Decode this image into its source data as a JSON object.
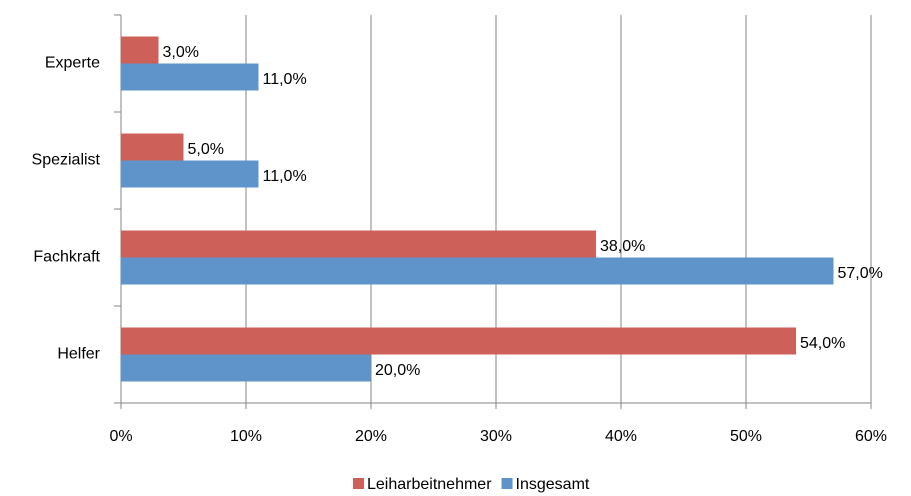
{
  "chart_data": {
    "type": "bar",
    "orientation": "horizontal",
    "categories": [
      "Experte",
      "Spezialist",
      "Fachkraft",
      "Helfer"
    ],
    "series": [
      {
        "name": "Leiharbeitnehmer",
        "color": "#cd6159",
        "values": [
          3,
          5,
          38,
          54
        ],
        "value_labels": [
          "3,0%",
          "5,0%",
          "38,0%",
          "54,0%"
        ]
      },
      {
        "name": "Insgesamt",
        "color": "#5f94cb",
        "values": [
          11,
          11,
          57,
          20
        ],
        "value_labels": [
          "11,0%",
          "11,0%",
          "57,0%",
          "20,0%"
        ]
      }
    ],
    "xlim": [
      0,
      60
    ],
    "xticks": [
      {
        "value": 0,
        "label": "0%"
      },
      {
        "value": 10,
        "label": "10%"
      },
      {
        "value": 20,
        "label": "20%"
      },
      {
        "value": 30,
        "label": "30%"
      },
      {
        "value": 40,
        "label": "40%"
      },
      {
        "value": 50,
        "label": "50%"
      },
      {
        "value": 60,
        "label": "60%"
      }
    ],
    "grid": true,
    "legend": "bottom"
  }
}
